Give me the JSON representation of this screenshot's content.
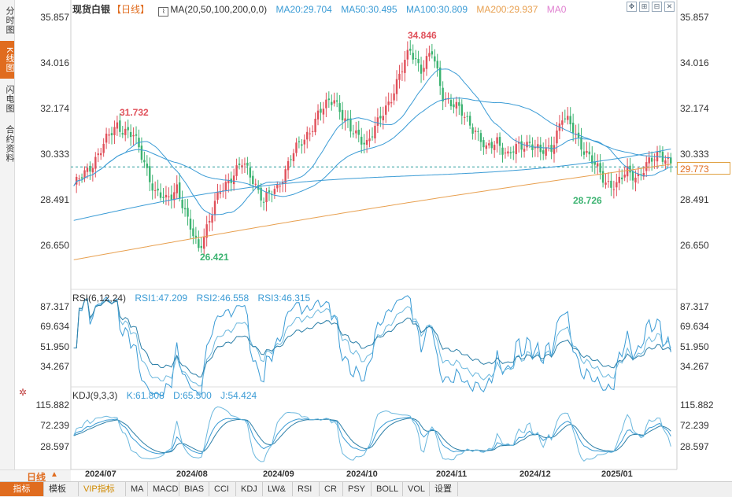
{
  "sidebar": {
    "tabs": [
      {
        "label": "分时图",
        "active": false
      },
      {
        "label": "K线图",
        "active": true
      },
      {
        "label": "闪电图",
        "active": false
      },
      {
        "label": "合约资料",
        "active": false
      }
    ]
  },
  "price_panel": {
    "instrument": "现货白银",
    "period_tag": "【日线】",
    "ma_label": "MA(20,50,100,200,0,0)",
    "ma_values": [
      {
        "text": "MA20:29.704",
        "color": "#3a9bd5"
      },
      {
        "text": "MA50:30.495",
        "color": "#3a9bd5"
      },
      {
        "text": "MA100:30.809",
        "color": "#3a9bd5"
      },
      {
        "text": "MA200:29.937",
        "color": "#e8a050"
      },
      {
        "text": "MA0",
        "color": "#e080d0"
      }
    ],
    "y_ticks": [
      "35.857",
      "34.016",
      "32.174",
      "30.333",
      "28.491",
      "26.650"
    ],
    "last_price": "29.773",
    "annotations": {
      "high1": "31.732",
      "high2": "34.846",
      "low1": "26.421",
      "low2": "28.726"
    }
  },
  "rsi_panel": {
    "label": "RSI(6,12,24)",
    "values": [
      {
        "text": "RSI1:47.209",
        "color": "#3a9bd5"
      },
      {
        "text": "RSI2:46.558",
        "color": "#3a9bd5"
      },
      {
        "text": "RSI3:46.315",
        "color": "#3a9bd5"
      }
    ],
    "y_ticks": [
      "87.317",
      "69.634",
      "51.950",
      "34.267"
    ]
  },
  "kdj_panel": {
    "label": "KDJ(9,3,3)",
    "values": [
      {
        "text": "K:61.808",
        "color": "#3a9bd5"
      },
      {
        "text": "D:65.500",
        "color": "#3a9bd5"
      },
      {
        "text": "J:54.424",
        "color": "#3a9bd5"
      }
    ],
    "y_ticks": [
      "115.882",
      "72.239",
      "28.597"
    ]
  },
  "x_axis": {
    "ticks": [
      "2024/07",
      "2024/08",
      "2024/09",
      "2024/10",
      "2024/11",
      "2024/12",
      "2025/01"
    ]
  },
  "period_selector": {
    "label": "日线"
  },
  "toolbar": {
    "buttons": [
      {
        "label": "指标",
        "active": true
      },
      {
        "label": "模板",
        "active": false
      },
      {
        "label": "VIP指标",
        "active": false,
        "vip": true
      },
      {
        "label": "MA"
      },
      {
        "label": "MACD"
      },
      {
        "label": "BIAS"
      },
      {
        "label": "CCI"
      },
      {
        "label": "KDJ"
      },
      {
        "label": "LW&"
      },
      {
        "label": "RSI"
      },
      {
        "label": "CR"
      },
      {
        "label": "PSY"
      },
      {
        "label": "BOLL"
      },
      {
        "label": "VOL"
      },
      {
        "label": "设置"
      }
    ]
  },
  "window_controls": [
    "move-icon",
    "expand-icon",
    "minimize-icon",
    "close-icon"
  ],
  "colors": {
    "up": "#e0505a",
    "down": "#3cb371",
    "ma_blue": "#3a9bd5",
    "ma200": "#e8a050",
    "accent": "#e06c1f"
  }
}
